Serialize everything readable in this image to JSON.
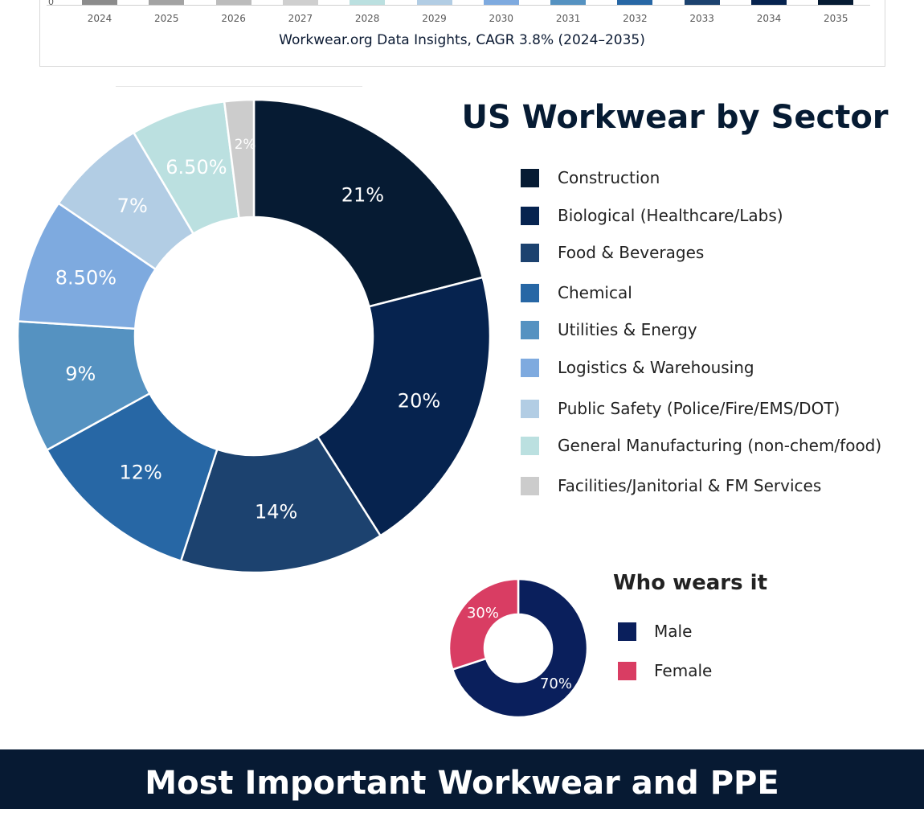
{
  "bar_chart": {
    "y_tick": "0",
    "years": [
      "2024",
      "2025",
      "2026",
      "2027",
      "2028",
      "2029",
      "2030",
      "2031",
      "2032",
      "2033",
      "2034",
      "2035"
    ],
    "colors": [
      "#8c8c8c",
      "#a3a3a3",
      "#bcbcbc",
      "#cfcfcf",
      "#bbe0e0",
      "#b2cde4",
      "#7eaadf",
      "#5592c1",
      "#2767a5",
      "#1c426f",
      "#06234f",
      "#061b33"
    ],
    "caption": "Workwear.org Data Insights, CAGR 3.8% (2024–2035)"
  },
  "chart_data": [
    {
      "type": "pie",
      "title": "US Workwear by Sector",
      "donut": true,
      "labels": [
        "Construction",
        "Biological (Healthcare/Labs)",
        "Food & Beverages",
        "Chemical",
        "Utilities & Energy",
        "Logistics & Warehousing",
        "Public Safety (Police/Fire/EMS/DOT)",
        "General Manufacturing (non-chem/food)",
        "Facilities/Janitorial & FM Services"
      ],
      "values": [
        21,
        20,
        14,
        12,
        9,
        8.5,
        7,
        6.5,
        2
      ],
      "data_labels": [
        "21%",
        "20%",
        "14%",
        "12%",
        "9%",
        "8.50%",
        "7%",
        "6.50%",
        "2%"
      ],
      "colors": [
        "#061b33",
        "#06234f",
        "#1c426f",
        "#2767a5",
        "#5592c1",
        "#7eaadf",
        "#b2cde4",
        "#bbe0e0",
        "#cccccc"
      ],
      "legend": "right"
    },
    {
      "type": "pie",
      "title": "Who wears it",
      "donut": true,
      "labels": [
        "Male",
        "Female"
      ],
      "values": [
        70,
        30
      ],
      "data_labels": [
        "70%",
        "30%"
      ],
      "colors": [
        "#0a1f5c",
        "#d93d63"
      ],
      "legend": "right"
    }
  ],
  "footer": {
    "title": "Most Important Workwear and PPE"
  }
}
